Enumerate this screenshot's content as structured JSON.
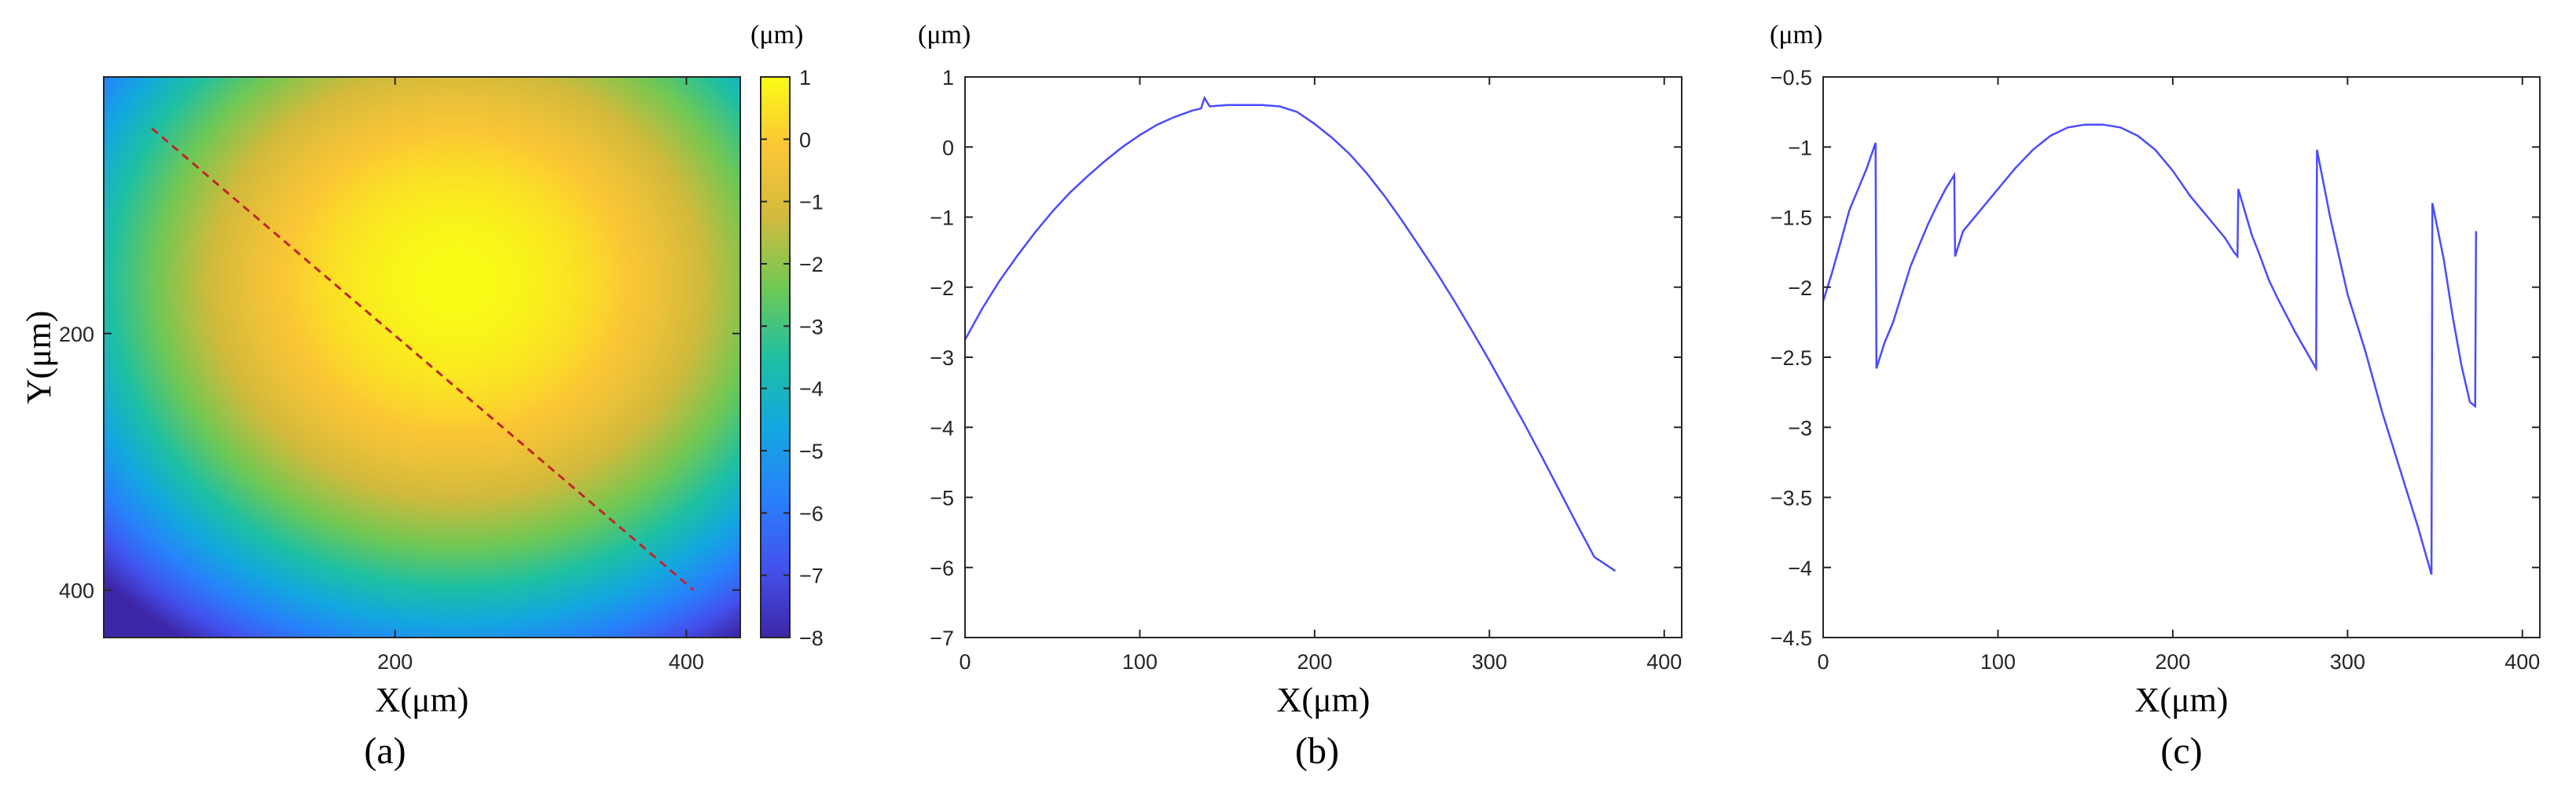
{
  "chart_data": [
    {
      "panel": "(a)",
      "type": "heatmap",
      "xlabel": "X(μm)",
      "ylabel": "Y(μm)",
      "x_ticks": [
        200,
        400
      ],
      "y_ticks": [
        200,
        400
      ],
      "xlim": [
        0,
        437
      ],
      "ylim": [
        0,
        437
      ],
      "y_reversed": true,
      "colormap": "parula",
      "colorbar": {
        "unit": "(μm)",
        "range": [
          -8,
          1
        ],
        "ticks": [
          1,
          0,
          -1,
          -2,
          -3,
          -4,
          -5,
          -6,
          -7,
          -8
        ]
      },
      "surface": {
        "peak_value": 1,
        "center_x": 242,
        "center_y": 160,
        "curvature": 8e-05
      },
      "profile_line": {
        "color": "#c0262b",
        "style": "dashed",
        "from": [
          33,
          40
        ],
        "to": [
          405,
          400
        ]
      }
    },
    {
      "panel": "(b)",
      "type": "line",
      "unit": "(μm)",
      "xlabel": "X(μm)",
      "ylabel": "",
      "xlim": [
        0,
        410
      ],
      "ylim": [
        -7,
        1
      ],
      "x_ticks": [
        0,
        100,
        200,
        300,
        400
      ],
      "y_ticks": [
        1,
        0,
        -1,
        -2,
        -3,
        -4,
        -5,
        -6,
        -7
      ],
      "line_color": "#4b4bff",
      "series": [
        {
          "x": [
            0,
            10,
            20,
            30,
            40,
            50,
            60,
            70,
            80,
            90,
            100,
            110,
            120,
            130,
            135,
            137,
            140,
            150,
            160,
            170,
            180,
            190,
            200,
            210,
            220,
            230,
            240,
            250,
            260,
            270,
            280,
            290,
            300,
            310,
            320,
            330,
            340,
            350,
            360,
            372
          ],
          "y": [
            -2.75,
            -2.3,
            -1.9,
            -1.55,
            -1.22,
            -0.92,
            -0.65,
            -0.42,
            -0.2,
            0.0,
            0.17,
            0.32,
            0.43,
            0.52,
            0.55,
            0.7,
            0.58,
            0.6,
            0.6,
            0.6,
            0.58,
            0.5,
            0.33,
            0.13,
            -0.1,
            -0.38,
            -0.7,
            -1.05,
            -1.42,
            -1.8,
            -2.2,
            -2.62,
            -3.05,
            -3.5,
            -3.95,
            -4.42,
            -4.9,
            -5.38,
            -5.85,
            -6.05
          ]
        }
      ]
    },
    {
      "panel": "(c)",
      "type": "line",
      "unit": "(μm)",
      "xlabel": "X(μm)",
      "ylabel": "",
      "xlim": [
        0,
        410
      ],
      "ylim": [
        -4.5,
        -0.5
      ],
      "x_ticks": [
        0,
        100,
        200,
        300,
        400
      ],
      "y_ticks": [
        -0.5,
        -1,
        -1.5,
        -2,
        -2.5,
        -3,
        -3.5,
        -4,
        -4.5
      ],
      "line_color": "#4b4bff",
      "series": [
        {
          "x": [
            0,
            5,
            10,
            15,
            20,
            25,
            30,
            30.5,
            35,
            40,
            45,
            50,
            55,
            60,
            65,
            70,
            75,
            75.5,
            80,
            90,
            100,
            110,
            120,
            130,
            140,
            150,
            160,
            170,
            180,
            190,
            200,
            210,
            220,
            230,
            235,
            237,
            237.5,
            245,
            250,
            255,
            260,
            270,
            282,
            282.5,
            290,
            300,
            310,
            320,
            330,
            340,
            348,
            348.5,
            355,
            360,
            365,
            370,
            373,
            373.5
          ],
          "y": [
            -2.1,
            -1.9,
            -1.68,
            -1.45,
            -1.3,
            -1.15,
            -0.97,
            -2.58,
            -2.4,
            -2.25,
            -2.05,
            -1.85,
            -1.7,
            -1.55,
            -1.42,
            -1.3,
            -1.2,
            -1.78,
            -1.6,
            -1.45,
            -1.3,
            -1.15,
            -1.02,
            -0.92,
            -0.86,
            -0.84,
            -0.84,
            -0.86,
            -0.92,
            -1.02,
            -1.17,
            -1.35,
            -1.5,
            -1.65,
            -1.75,
            -1.78,
            -1.3,
            -1.62,
            -1.78,
            -1.95,
            -2.08,
            -2.32,
            -2.58,
            -1.02,
            -1.5,
            -2.05,
            -2.45,
            -2.9,
            -3.3,
            -3.7,
            -4.05,
            -1.4,
            -1.8,
            -2.2,
            -2.55,
            -2.82,
            -2.85,
            -1.6
          ]
        }
      ]
    }
  ]
}
